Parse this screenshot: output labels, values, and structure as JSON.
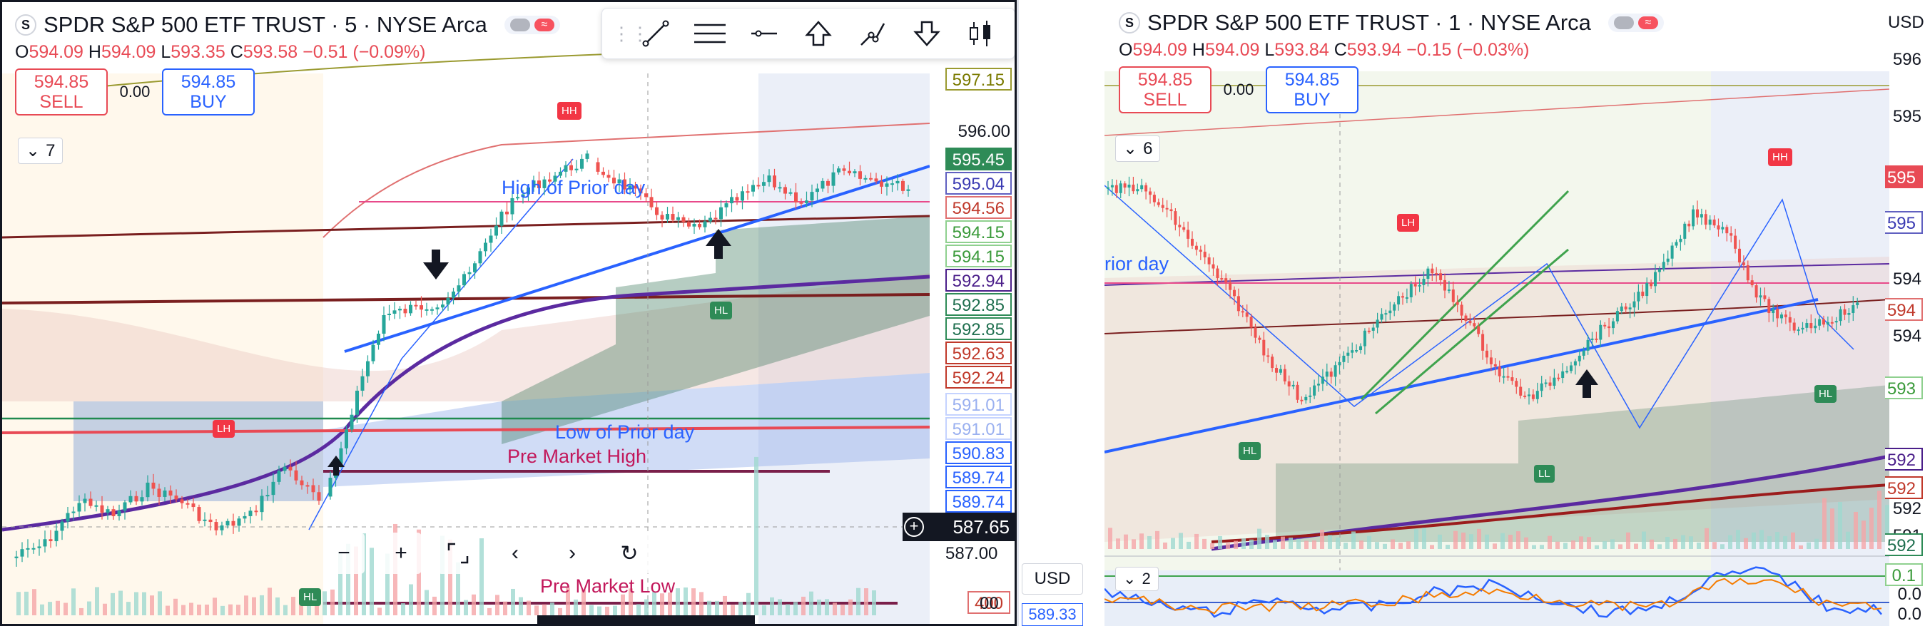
{
  "left_chart": {
    "symbol_icon": "S",
    "title": "SPDR S&P 500 ETF TRUST · 5 · NYSE Arca",
    "ohlc": {
      "o_label": "O",
      "o": "594.09",
      "h_label": "H",
      "h": "594.09",
      "l_label": "L",
      "l": "593.35",
      "c_label": "C",
      "c": "593.58",
      "change": "−0.51 (−0.09%)"
    },
    "sell": {
      "price": "594.85",
      "label": "SELL"
    },
    "spread": "0.00",
    "buy": {
      "price": "594.85",
      "label": "BUY"
    },
    "indicators_count": "7",
    "toolbar_icons": [
      "trend-line-icon",
      "parallel-channel-icon",
      "horizontal-line-icon",
      "arrow-up-icon",
      "path-icon",
      "arrow-down-icon",
      "candles-icon"
    ],
    "labels": {
      "high_prior": "High of Prior day",
      "low_prior": "Low of Prior day",
      "pm_high": "Pre Market High",
      "pm_low": "Pre Market Low"
    },
    "badges": {
      "hh": "HH",
      "lh": "LH",
      "hl1": "HL",
      "hl2": "HL"
    },
    "price_axis": [
      {
        "v": "597.15",
        "fg": "#7a7a00",
        "bg": "#ffffff",
        "border": "#9a9a30"
      },
      {
        "v": "596.00",
        "plain": true
      },
      {
        "v": "595.45",
        "fg": "#ffffff",
        "bg": "#2e8b57",
        "border": "#2e8b57"
      },
      {
        "v": "595.04",
        "fg": "#3b3bb3",
        "bg": "#ffffff",
        "border": "#6060c0"
      },
      {
        "v": "594.56",
        "fg": "#c0392b",
        "bg": "#ffffff",
        "border": "#e07070"
      },
      {
        "v": "594.15",
        "fg": "#3a9a3a",
        "bg": "#ffffff",
        "border": "#8fd08f"
      },
      {
        "v": "594.15",
        "fg": "#3a9a3a",
        "bg": "#ffffff",
        "border": "#8fd08f"
      },
      {
        "v": "592.94",
        "fg": "#4b1f8a",
        "bg": "#ffffff",
        "border": "#4b1f8a"
      },
      {
        "v": "592.85",
        "fg": "#1f6f4f",
        "bg": "#ffffff",
        "border": "#2e8b57"
      },
      {
        "v": "592.85",
        "fg": "#1f6f4f",
        "bg": "#ffffff",
        "border": "#2e8b57"
      },
      {
        "v": "592.63",
        "fg": "#c0392b",
        "bg": "#ffffff",
        "border": "#c0392b"
      },
      {
        "v": "592.24",
        "fg": "#c0392b",
        "bg": "#ffffff",
        "border": "#c0392b"
      },
      {
        "v": "591.01",
        "fg": "#9ab0f0",
        "bg": "#ffffff",
        "border": "#c5d3ff"
      },
      {
        "v": "591.01",
        "fg": "#9ab0f0",
        "bg": "#ffffff",
        "border": "#c5d3ff"
      },
      {
        "v": "590.83",
        "fg": "#2962ff",
        "bg": "#ffffff",
        "border": "#2962ff"
      },
      {
        "v": "589.74",
        "fg": "#2962ff",
        "bg": "#ffffff",
        "border": "#2962ff"
      },
      {
        "v": "589.74",
        "fg": "#2962ff",
        "bg": "#ffffff",
        "border": "#2962ff"
      }
    ],
    "crosshair_price": "587.65",
    "plain_587": "587.00",
    "vol_label": "400",
    "bottom_tick": "00",
    "nav": {
      "zoom_out": "−",
      "zoom_in": "+",
      "reset": "⛶",
      "back": "‹",
      "forward": "›",
      "refresh": "↻"
    }
  },
  "right_chart": {
    "symbol_icon": "S",
    "title": "SPDR S&P 500 ETF TRUST · 1 · NYSE Arca",
    "ohlc": {
      "o_label": "O",
      "o": "594.09",
      "h_label": "H",
      "h": "594.09",
      "l_label": "L",
      "l": "593.84",
      "c_label": "C",
      "c": "593.94",
      "change": "−0.15 (−0.03%)"
    },
    "sell": {
      "price": "594.85",
      "label": "SELL"
    },
    "spread": "0.00",
    "buy": {
      "price": "594.85",
      "label": "BUY"
    },
    "indicators_count": "6",
    "sub_count": "2",
    "currency": "USD",
    "currency_top": "USD",
    "current_price": "589.33",
    "label_prior": "rior day",
    "badges": {
      "hh": "HH",
      "lh": "LH",
      "hl1": "HL",
      "ll": "LL",
      "hl2": "HL"
    },
    "price_axis": [
      {
        "v": "596",
        "plain": true
      },
      {
        "v": "595",
        "plain": true
      },
      {
        "v": "595",
        "fg": "#ffffff",
        "bg": "#e84a55",
        "border": "#e84a55"
      },
      {
        "v": "595",
        "fg": "#3b3bb3",
        "bg": "#ffffff",
        "border": "#6060c0"
      },
      {
        "v": "594",
        "plain": true
      },
      {
        "v": "594",
        "fg": "#c0392b",
        "bg": "#ffffff",
        "border": "#e07070"
      },
      {
        "v": "594",
        "plain": true
      },
      {
        "v": "593",
        "fg": "#3a9a3a",
        "bg": "#ffffff",
        "border": "#8fd08f"
      },
      {
        "v": "592",
        "fg": "#4b1f8a",
        "bg": "#ffffff",
        "border": "#4b1f8a"
      },
      {
        "v": "592",
        "fg": "#c0392b",
        "bg": "#ffffff",
        "border": "#c0392b"
      },
      {
        "v": "592",
        "plain": true
      },
      {
        "v": "591",
        "plain": true
      },
      {
        "v": "592",
        "fg": "#1f6f4f",
        "bg": "#ffffff",
        "border": "#2e8b57"
      },
      {
        "v": "0.1",
        "fg": "#3a9a3a",
        "bg": "#ffffff",
        "border": "#8fd08f"
      },
      {
        "v": "0.0",
        "plain": true
      },
      {
        "v": "0.0",
        "plain": true
      }
    ]
  },
  "colors": {
    "up": "#26a69a",
    "down": "#ef5350",
    "blue": "#2962ff",
    "purple": "#5b2aa0",
    "maroon": "#7a1f1f",
    "green": "#3fa34d"
  }
}
